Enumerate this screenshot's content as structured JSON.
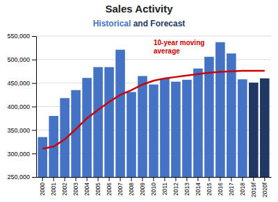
{
  "chart_data": {
    "type": "bar",
    "title": "Sales Activity",
    "subtitle": [
      "Historical",
      " and Forecast"
    ],
    "annotation": "10-year moving\naverage",
    "categories": [
      "2000",
      "2001",
      "2002",
      "2003",
      "2004",
      "2005",
      "2006",
      "2007",
      "2008",
      "2009",
      "2010",
      "2011",
      "2012",
      "2013",
      "2014",
      "2015",
      "2016",
      "2017",
      "2018",
      "2019f",
      "2020f"
    ],
    "series": [
      {
        "type": "bar",
        "values": [
          335000,
          380000,
          418000,
          435000,
          461000,
          484000,
          484000,
          521000,
          431000,
          465000,
          447000,
          460000,
          453000,
          457000,
          481000,
          506000,
          537000,
          513000,
          458000,
          451000,
          460000
        ],
        "colors": [
          "#4472C4",
          "#4472C4",
          "#4472C4",
          "#4472C4",
          "#4472C4",
          "#4472C4",
          "#4472C4",
          "#4472C4",
          "#4472C4",
          "#4472C4",
          "#4472C4",
          "#4472C4",
          "#4472C4",
          "#4472C4",
          "#4472C4",
          "#4472C4",
          "#4472C4",
          "#4472C4",
          "#4472C4",
          "#1F3864",
          "#1F3864"
        ]
      },
      {
        "type": "line",
        "values": [
          310000,
          315000,
          330000,
          352000,
          375000,
          393000,
          410000,
          425000,
          435000,
          447000,
          455000,
          460000,
          463000,
          466000,
          469000,
          472000,
          474000,
          475000,
          476000,
          476000,
          476000
        ],
        "color": "#CC0000"
      }
    ],
    "ylim": [
      250000,
      550000
    ],
    "yticks": [
      {
        "value": 250000,
        "label": "250,000"
      },
      {
        "value": 300000,
        "label": "300,000"
      },
      {
        "value": 350000,
        "label": "350,000"
      },
      {
        "value": 400000,
        "label": "400,000"
      },
      {
        "value": 450000,
        "label": "450,000"
      },
      {
        "value": 500000,
        "label": "500,000"
      },
      {
        "value": 550000,
        "label": "550,000"
      }
    ],
    "grid": true
  }
}
